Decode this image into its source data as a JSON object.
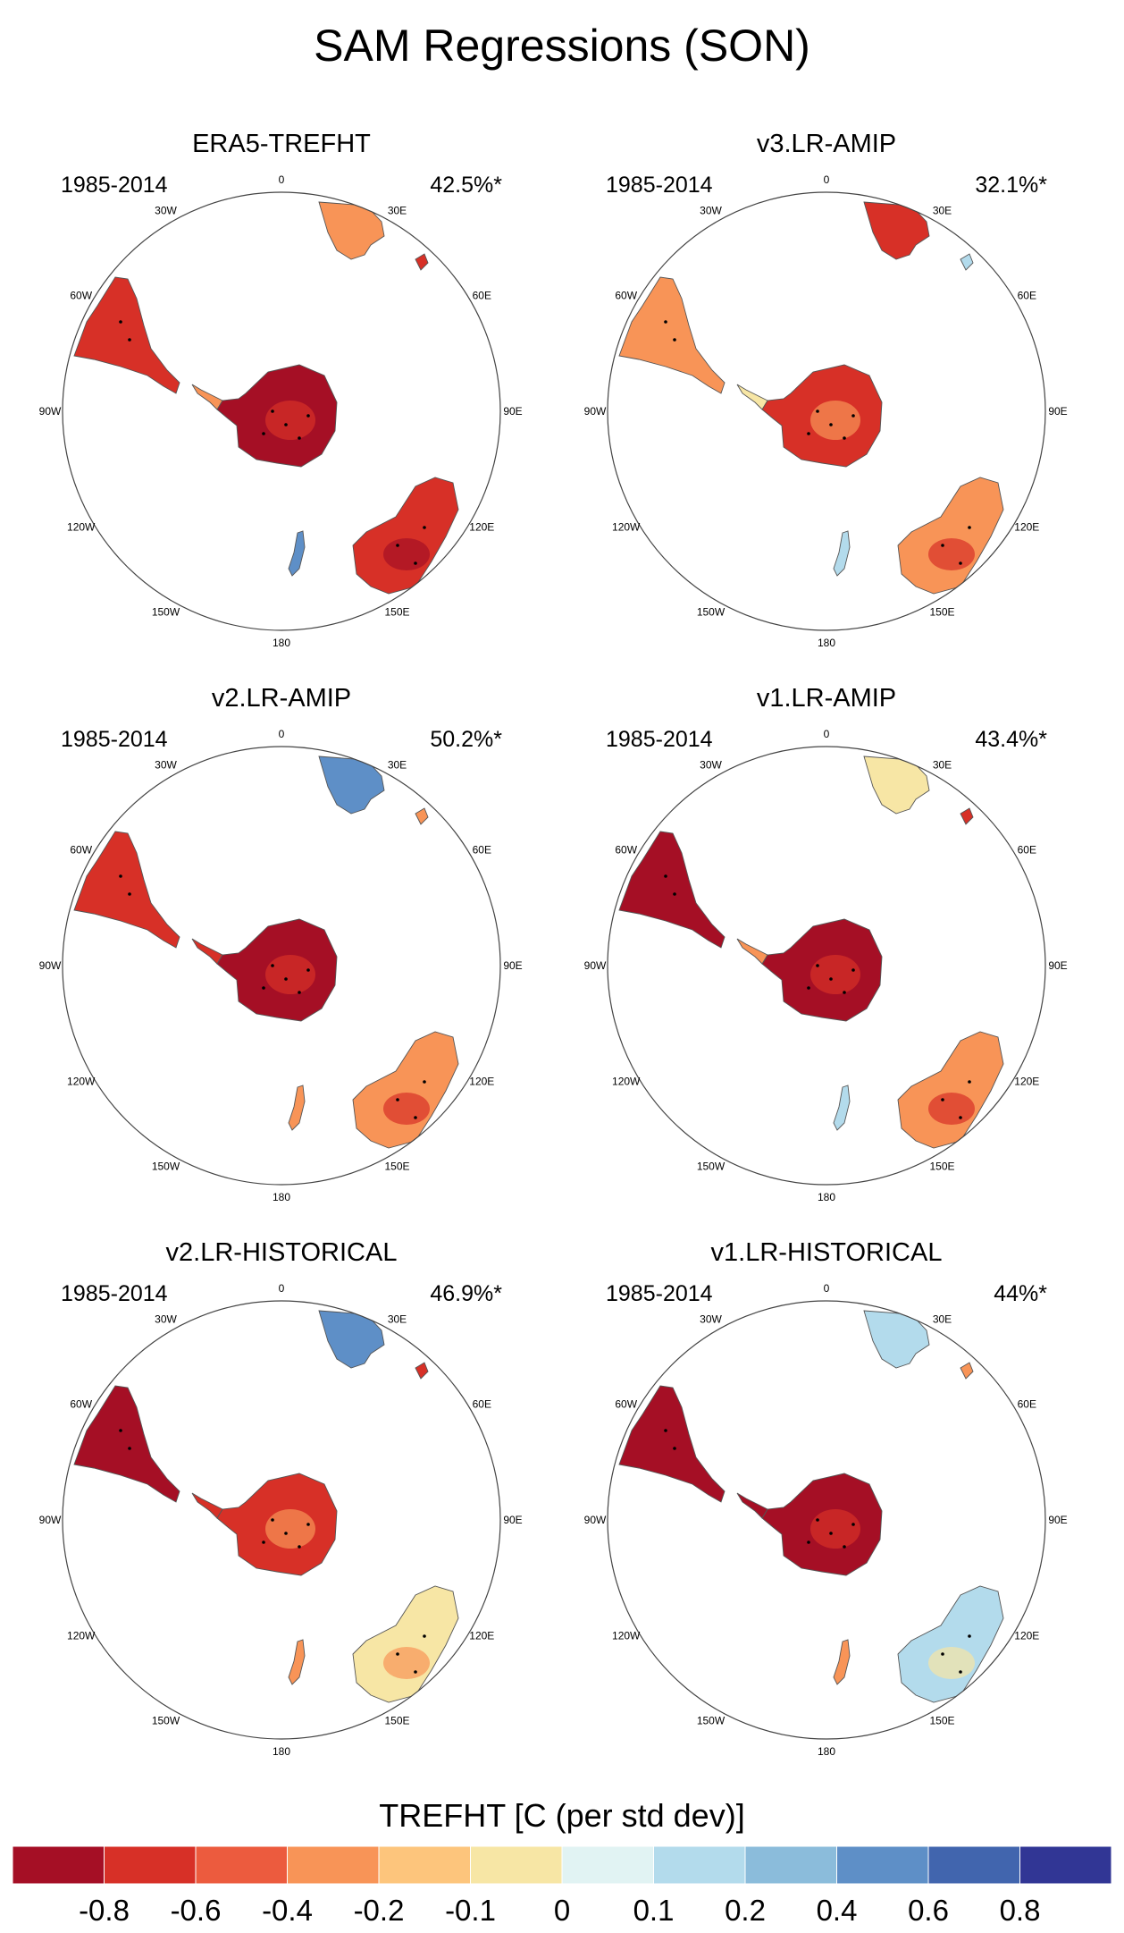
{
  "title": "SAM Regressions (SON)",
  "longitude_labels": [
    "0",
    "30E",
    "60E",
    "90E",
    "120E",
    "150E",
    "180",
    "150W",
    "120W",
    "90W",
    "60W",
    "30W"
  ],
  "panels": [
    {
      "title": "ERA5-TREFHT",
      "period": "1985-2014",
      "percent": "42.5%*",
      "pattern": [
        2,
        3,
        1,
        2,
        1,
        -2,
        2
      ]
    },
    {
      "title": "v3.LR-AMIP",
      "period": "1985-2014",
      "percent": "32.1%*",
      "pattern": [
        1,
        2,
        0,
        1,
        2,
        -1,
        -1
      ]
    },
    {
      "title": "v2.LR-AMIP",
      "period": "1985-2014",
      "percent": "50.2%*",
      "pattern": [
        2,
        3,
        2,
        1,
        -2,
        1,
        1
      ]
    },
    {
      "title": "v1.LR-AMIP",
      "period": "1985-2014",
      "percent": "43.4%*",
      "pattern": [
        3,
        3,
        1,
        1,
        0,
        -1,
        2
      ]
    },
    {
      "title": "v2.LR-HISTORICAL",
      "period": "1985-2014",
      "percent": "46.9%*",
      "pattern": [
        3,
        2,
        2,
        0,
        -2,
        1,
        2
      ]
    },
    {
      "title": "v1.LR-HISTORICAL",
      "period": "1985-2014",
      "percent": "44%*",
      "pattern": [
        3,
        3,
        3,
        -1,
        -1,
        1,
        1
      ]
    }
  ],
  "colorbar": {
    "title": "TREFHT [C (per std dev)]",
    "labels": [
      "-0.8",
      "-0.6",
      "-0.4",
      "-0.2",
      "-0.1",
      "0",
      "0.1",
      "0.2",
      "0.4",
      "0.6",
      "0.8"
    ],
    "colors": [
      "#a50f25",
      "#d73027",
      "#ec5b3e",
      "#f89457",
      "#fdc57c",
      "#f7e6a5",
      "#e1f3f3",
      "#b3dbec",
      "#8bbcdb",
      "#5e8fc7",
      "#4165ae",
      "#313695"
    ]
  }
}
